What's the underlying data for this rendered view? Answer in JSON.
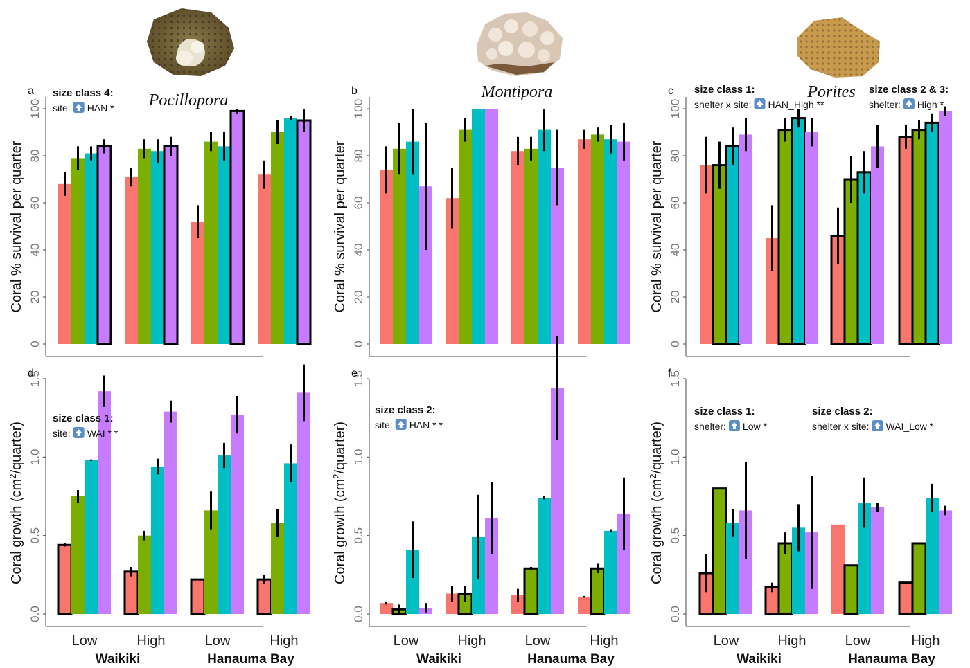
{
  "colors": {
    "c1": "#f8766d",
    "c2": "#7cae00",
    "c3": "#00bfc4",
    "c4": "#c77cff"
  },
  "icons": {
    "annotation_arrow": "arrow-up-icon"
  },
  "chart_data": [
    {
      "type": "bar",
      "panel": "a",
      "genus": "Pocillopora",
      "ylabel": "Coral % survival per quarter",
      "yticks": [
        "0",
        "20",
        "40",
        "60",
        "80",
        "100"
      ],
      "ylim": [
        0,
        100
      ],
      "categories": [
        "Low",
        "High",
        "Low",
        "High"
      ],
      "groups": [
        "Waikiki",
        "Hanauma Bay"
      ],
      "values": [
        [
          68,
          79,
          81,
          84
        ],
        [
          71,
          83,
          82,
          84
        ],
        [
          52,
          86,
          84,
          99
        ],
        [
          72,
          90,
          96,
          95
        ]
      ],
      "errors": [
        [
          5,
          5,
          3,
          3
        ],
        [
          4,
          4,
          5,
          4
        ],
        [
          7,
          4,
          6,
          1
        ],
        [
          6,
          5,
          1,
          5
        ]
      ],
      "outlined": [
        [
          false,
          false,
          false,
          true
        ],
        [
          false,
          false,
          false,
          true
        ],
        [
          false,
          false,
          false,
          true
        ],
        [
          false,
          false,
          false,
          true
        ]
      ],
      "annotations": [
        {
          "title": "size class 4:",
          "text": "site:",
          "effect": "HAN *"
        }
      ]
    },
    {
      "type": "bar",
      "panel": "b",
      "genus": "Montipora",
      "ylabel": "Coral % survival per quarter",
      "yticks": [
        "0",
        "20",
        "40",
        "60",
        "80",
        "100"
      ],
      "ylim": [
        0,
        100
      ],
      "categories": [
        "Low",
        "High",
        "Low",
        "High"
      ],
      "groups": [
        "Waikiki",
        "Hanauma Bay"
      ],
      "values": [
        [
          74,
          83,
          86,
          67
        ],
        [
          62,
          91,
          100,
          100
        ],
        [
          82,
          83,
          91,
          75
        ],
        [
          87,
          89,
          87,
          86
        ]
      ],
      "errors": [
        [
          10,
          11,
          14,
          27
        ],
        [
          13,
          5,
          0,
          0
        ],
        [
          6,
          5,
          9,
          16
        ],
        [
          4,
          3,
          6,
          8
        ]
      ],
      "outlined": [
        [
          false,
          false,
          false,
          false
        ],
        [
          false,
          false,
          false,
          false
        ],
        [
          false,
          false,
          false,
          false
        ],
        [
          false,
          false,
          false,
          false
        ]
      ],
      "annotations": []
    },
    {
      "type": "bar",
      "panel": "c",
      "genus": "Porites",
      "ylabel": "Coral % survival per quarter",
      "yticks": [
        "0",
        "20",
        "40",
        "60",
        "80",
        "100"
      ],
      "ylim": [
        0,
        100
      ],
      "categories": [
        "Low",
        "High",
        "Low",
        "High"
      ],
      "groups": [
        "Waikiki",
        "Hanauma Bay"
      ],
      "values": [
        [
          76,
          76,
          84,
          89
        ],
        [
          45,
          91,
          96,
          90
        ],
        [
          46,
          70,
          73,
          84
        ],
        [
          88,
          91,
          94,
          99
        ]
      ],
      "errors": [
        [
          12,
          10,
          8,
          7
        ],
        [
          14,
          5,
          4,
          6
        ],
        [
          12,
          10,
          9,
          9
        ],
        [
          5,
          4,
          4,
          2
        ]
      ],
      "outlined": [
        [
          false,
          true,
          true,
          false
        ],
        [
          false,
          true,
          true,
          false
        ],
        [
          true,
          true,
          true,
          false
        ],
        [
          true,
          true,
          true,
          false
        ]
      ],
      "annotations": [
        {
          "title": "size class 1:",
          "text": "shelter x site:",
          "effect": "HAN_High **"
        },
        {
          "title": "size class 2 & 3:",
          "text": "shelter:",
          "effect": "High *"
        }
      ]
    },
    {
      "type": "bar",
      "panel": "d",
      "ylabel": "Coral growth (cm²/quarter)",
      "yticks": [
        "0.0",
        "0.5",
        "1.0",
        "1.5"
      ],
      "ylim": [
        0,
        1.5
      ],
      "categories": [
        "Low",
        "High",
        "Low",
        "High"
      ],
      "groups": [
        "Waikiki",
        "Hanauma Bay"
      ],
      "values": [
        [
          0.44,
          0.75,
          0.98,
          1.42
        ],
        [
          0.27,
          0.5,
          0.94,
          1.29
        ],
        [
          0.22,
          0.66,
          1.01,
          1.27
        ],
        [
          0.22,
          0.58,
          0.96,
          1.41
        ]
      ],
      "errors": [
        [
          0.01,
          0.04,
          0.005,
          0.1
        ],
        [
          0.03,
          0.03,
          0.05,
          0.07
        ],
        [
          0.005,
          0.12,
          0.08,
          0.12
        ],
        [
          0.03,
          0.09,
          0.12,
          0.18
        ]
      ],
      "outlined": [
        [
          true,
          false,
          false,
          false
        ],
        [
          true,
          false,
          false,
          false
        ],
        [
          true,
          false,
          false,
          false
        ],
        [
          true,
          false,
          false,
          false
        ]
      ],
      "annotations": [
        {
          "title": "size class 1:",
          "text": "site:",
          "effect": "WAI * *"
        }
      ]
    },
    {
      "type": "bar",
      "panel": "e",
      "ylabel": "Coral growth (cm²/quarter)",
      "yticks": [
        "0.0",
        "0.5",
        "1.0",
        "1.5"
      ],
      "ylim": [
        0,
        1.5
      ],
      "categories": [
        "Low",
        "High",
        "Low",
        "High"
      ],
      "groups": [
        "Waikiki",
        "Hanauma Bay"
      ],
      "values": [
        [
          0.07,
          0.03,
          0.41,
          0.04
        ],
        [
          0.13,
          0.13,
          0.49,
          0.61
        ],
        [
          0.12,
          0.29,
          0.74,
          1.44
        ],
        [
          0.11,
          0.29,
          0.53,
          0.64
        ]
      ],
      "errors": [
        [
          0.01,
          0.03,
          0.18,
          0.03
        ],
        [
          0.05,
          0.05,
          0.27,
          0.23
        ],
        [
          0.04,
          0.01,
          0.01,
          0.33
        ],
        [
          0.005,
          0.03,
          0.01,
          0.23
        ]
      ],
      "outlined": [
        [
          false,
          true,
          false,
          false
        ],
        [
          false,
          true,
          false,
          false
        ],
        [
          false,
          true,
          false,
          false
        ],
        [
          false,
          true,
          false,
          false
        ]
      ],
      "annotations": [
        {
          "title": "size class 2:",
          "text": "site:",
          "effect": "HAN * *"
        }
      ]
    },
    {
      "type": "bar",
      "panel": "f",
      "ylabel": "Coral growth (cm²/quarter)",
      "yticks": [
        "0.0",
        "0.5",
        "1.0",
        "1.5"
      ],
      "ylim": [
        0,
        1.5
      ],
      "categories": [
        "Low",
        "High",
        "Low",
        "High"
      ],
      "groups": [
        "Waikiki",
        "Hanauma Bay"
      ],
      "values": [
        [
          0.26,
          0.8,
          0.58,
          0.66
        ],
        [
          0.17,
          0.45,
          0.55,
          0.52
        ],
        [
          0.57,
          0.31,
          0.71,
          0.68
        ],
        [
          0.2,
          0.45,
          0.74,
          0.66
        ]
      ],
      "errors": [
        [
          0.12,
          0,
          0.09,
          0.31
        ],
        [
          0.03,
          0.07,
          0.15,
          0.36
        ],
        [
          0,
          0,
          0.16,
          0.03
        ],
        [
          0,
          0,
          0.09,
          0.03
        ]
      ],
      "outlined": [
        [
          true,
          true,
          false,
          false
        ],
        [
          true,
          true,
          false,
          false
        ],
        [
          false,
          true,
          false,
          false
        ],
        [
          true,
          true,
          false,
          false
        ]
      ],
      "annotations": [
        {
          "title": "size class 1:",
          "text": "shelter:",
          "effect": "Low *"
        },
        {
          "title": "size class 2:",
          "text": "shelter x site:",
          "effect": "WAI_Low *"
        }
      ]
    }
  ]
}
